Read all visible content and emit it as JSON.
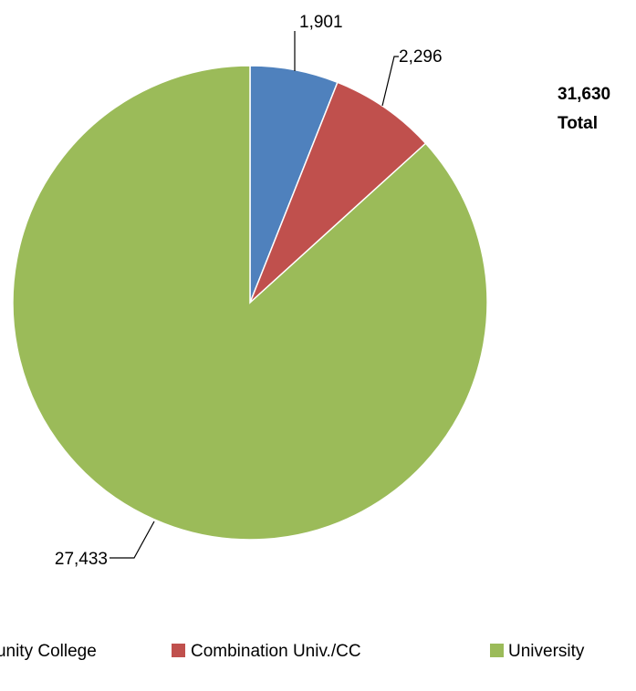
{
  "chart_data": {
    "type": "pie",
    "title": "",
    "categories": [
      "Community College",
      "Combination Univ./CC",
      "University"
    ],
    "values": [
      1901,
      2296,
      27433
    ],
    "value_labels": [
      "1,901",
      "2,296",
      "27,433"
    ],
    "colors": [
      "#4F81BD",
      "#C0504D",
      "#9BBB59"
    ],
    "total": {
      "value": "31,630",
      "label": "Total"
    },
    "legend": {
      "position": "bottom",
      "entries": [
        "Community College",
        "Combination Univ./CC",
        "University"
      ]
    }
  }
}
